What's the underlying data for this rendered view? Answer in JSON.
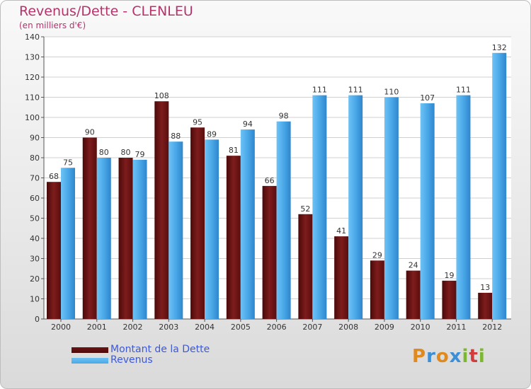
{
  "header": {
    "title": "Revenus/Dette - CLENLEU",
    "subtitle": "(en milliers d'€)"
  },
  "chart_data": {
    "type": "bar",
    "categories": [
      "2000",
      "2001",
      "2002",
      "2003",
      "2004",
      "2005",
      "2006",
      "2007",
      "2008",
      "2009",
      "2010",
      "2011",
      "2012"
    ],
    "series": [
      {
        "name": "Montant de la Dette",
        "values": [
          68,
          90,
          80,
          108,
          95,
          81,
          66,
          52,
          41,
          29,
          24,
          19,
          13
        ],
        "color": "#6e1414"
      },
      {
        "name": "Revenus",
        "values": [
          75,
          80,
          79,
          88,
          89,
          94,
          98,
          111,
          111,
          110,
          107,
          111,
          132
        ],
        "color": "#4aa8e8"
      }
    ],
    "ylim": [
      0,
      140
    ],
    "yticks": [
      0,
      10,
      20,
      30,
      40,
      50,
      60,
      70,
      80,
      90,
      100,
      110,
      120,
      130,
      140
    ],
    "grid": true,
    "legend_position": "bottom-left"
  },
  "logo": {
    "letters": [
      "P",
      "r",
      "o",
      "x",
      "i",
      "t",
      "i"
    ],
    "colors": [
      "#e08a1e",
      "#3c8fd6",
      "#e08a1e",
      "#3c8fd6",
      "#7cb82f",
      "#d33c3c",
      "#7cb82f"
    ]
  }
}
